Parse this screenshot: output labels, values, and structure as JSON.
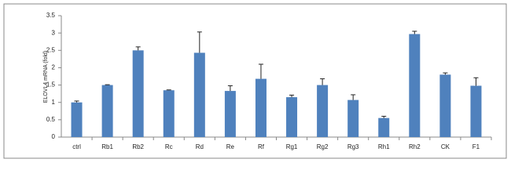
{
  "chart_data": {
    "type": "bar",
    "ylabel": "ELOVL4 mRNA (fold)",
    "categories": [
      "ctrl",
      "Rb1",
      "Rb2",
      "Rc",
      "Rd",
      "Re",
      "Rf",
      "Rg1",
      "Rg2",
      "Rg3",
      "Rh1",
      "Rh2",
      "CK",
      "F1"
    ],
    "values": [
      1.0,
      1.5,
      2.5,
      1.35,
      2.43,
      1.33,
      1.68,
      1.15,
      1.5,
      1.07,
      0.55,
      2.97,
      1.8,
      1.48
    ],
    "errors": [
      0.04,
      0.01,
      0.1,
      0.01,
      0.6,
      0.15,
      0.42,
      0.06,
      0.18,
      0.15,
      0.05,
      0.08,
      0.05,
      0.23
    ],
    "color": "#4f81bd",
    "ylim": [
      0,
      3.5
    ],
    "yticks": [
      0,
      0.5,
      1,
      1.5,
      2,
      2.5,
      3,
      3.5
    ]
  }
}
